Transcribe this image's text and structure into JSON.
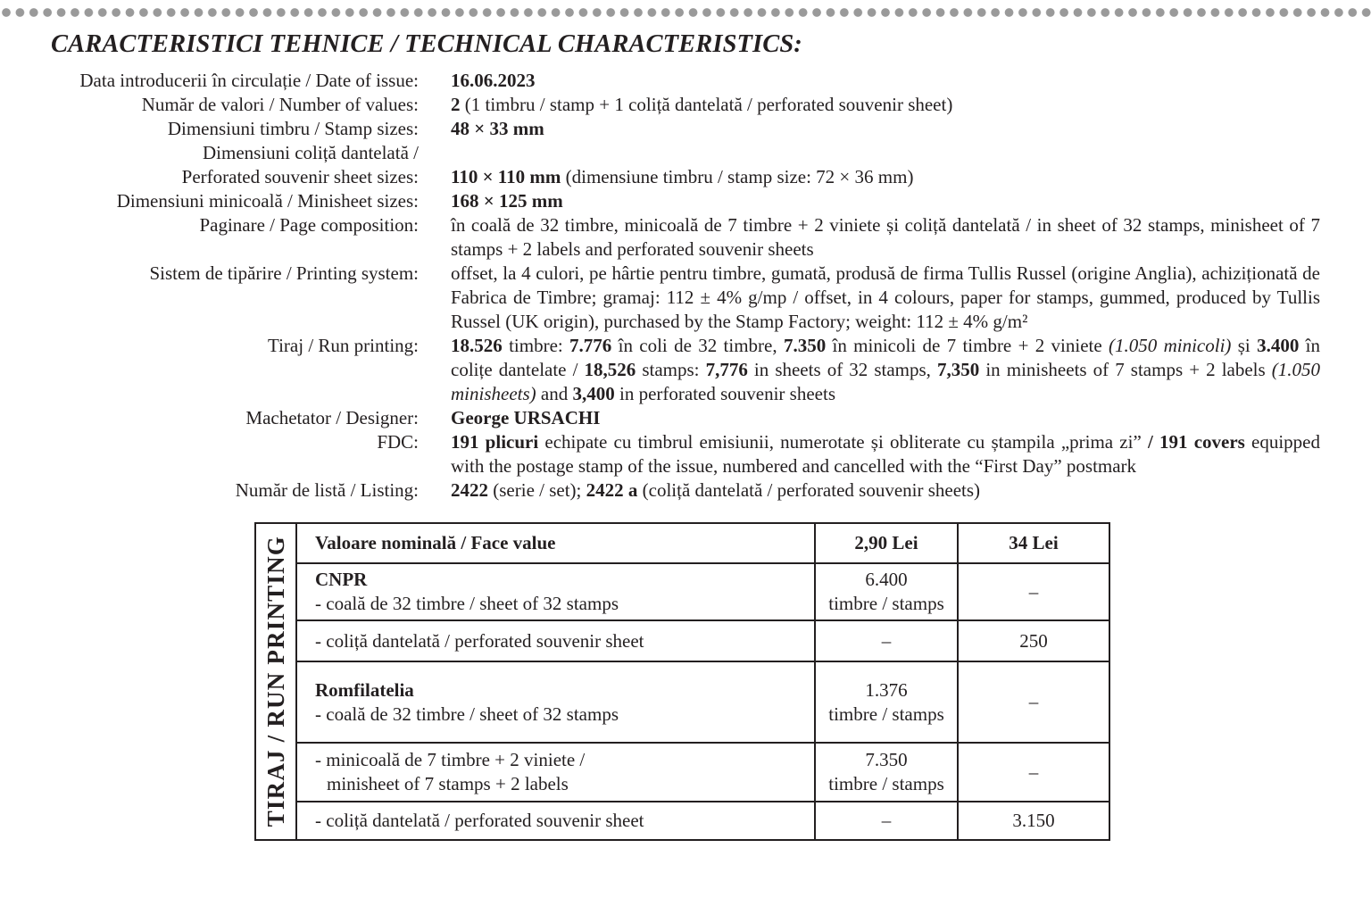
{
  "title": "CARACTERISTICI TEHNICE / TECHNICAL CHARACTERISTICS:",
  "specs": [
    {
      "label": [
        "Data introducerii în circulație / Date of issue:"
      ],
      "value": [
        [
          "b",
          "16.06.2023"
        ]
      ]
    },
    {
      "label": [
        "Număr de valori / Number of values:"
      ],
      "value": [
        [
          "b",
          "2"
        ],
        [
          "n",
          " (1 timbru / stamp + 1 coliță dantelată / perforated souvenir sheet)"
        ]
      ]
    },
    {
      "label": [
        "Dimensiuni timbru / Stamp sizes:"
      ],
      "value": [
        [
          "b",
          "48 × 33 mm"
        ]
      ]
    },
    {
      "label": [
        "Dimensiuni coliță dantelată /",
        "Perforated souvenir sheet sizes:"
      ],
      "value": [
        [
          "b",
          "110 × 110 mm"
        ],
        [
          "n",
          " (dimensiune timbru / stamp size: 72 × 36 mm)"
        ]
      ]
    },
    {
      "label": [
        "Dimensiuni minicoală / Minisheet sizes:"
      ],
      "value": [
        [
          "b",
          "168 × 125 mm"
        ]
      ]
    },
    {
      "label": [
        "Paginare / Page composition:"
      ],
      "value": [
        [
          "n",
          "în coală de 32 timbre, minicoală de 7 timbre + 2 viniete și coliță dantelată / in sheet of 32 stamps, minisheet of 7 stamps + 2 labels and perforated souvenir sheets"
        ]
      ]
    },
    {
      "label": [
        "Sistem de tipărire / Printing system:"
      ],
      "value": [
        [
          "n",
          "offset, la 4 culori, pe hârtie pentru timbre, gumată, produsă de firma Tullis Russel (origine Anglia), achiziționată de Fabrica de Timbre; gramaj: 112 ± 4% g/mp / offset, in 4 colours, paper for stamps, gummed, produced by Tullis Russel (UK origin), purchased by the Stamp Factory; weight: 112 ± 4% g/m²"
        ]
      ]
    },
    {
      "label": [
        "Tiraj / Run printing:"
      ],
      "value": [
        [
          "b",
          "18.526"
        ],
        [
          "n",
          " timbre: "
        ],
        [
          "b",
          "7.776"
        ],
        [
          "n",
          " în coli de 32 timbre, "
        ],
        [
          "b",
          "7.350"
        ],
        [
          "n",
          " în minicoli de 7 timbre + 2 viniete "
        ],
        [
          "i",
          "(1.050 minicoli)"
        ],
        [
          "n",
          " și "
        ],
        [
          "b",
          "3.400"
        ],
        [
          "n",
          " în colițe dantelate / "
        ],
        [
          "b",
          "18,526"
        ],
        [
          "n",
          " stamps: "
        ],
        [
          "b",
          "7,776"
        ],
        [
          "n",
          " in sheets of 32 stamps, "
        ],
        [
          "b",
          "7,350"
        ],
        [
          "n",
          " in minisheets of 7 stamps + 2 labels "
        ],
        [
          "i",
          "(1.050 minisheets)"
        ],
        [
          "n",
          " and "
        ],
        [
          "b",
          "3,400"
        ],
        [
          "n",
          " in perforated souvenir sheets"
        ]
      ]
    },
    {
      "label": [
        "Machetator / Designer:"
      ],
      "value": [
        [
          "b",
          "George URSACHI"
        ]
      ]
    },
    {
      "label": [
        "FDC:"
      ],
      "value": [
        [
          "b",
          "191 plicuri"
        ],
        [
          "n",
          " echipate cu timbrul emisiunii, numerotate și obliterate cu ștampila „prima zi” "
        ],
        [
          "b",
          "/ 191 covers"
        ],
        [
          "n",
          " equipped with the postage stamp of the issue, numbered and cancelled with the “First Day” postmark"
        ]
      ]
    },
    {
      "label": [
        "Număr de listă / Listing:"
      ],
      "value": [
        [
          "b",
          "2422"
        ],
        [
          "n",
          " (serie / set); "
        ],
        [
          "b",
          "2422 a"
        ],
        [
          "n",
          " (coliță dantelată / perforated souvenir sheets)"
        ]
      ]
    }
  ],
  "table": {
    "side_label": "TIRAJ / RUN PRINTING",
    "header": {
      "desc": "Valoare nominală / Face value",
      "col1": "2,90 Lei",
      "col2": "34 Lei"
    },
    "rows": [
      {
        "heading": "CNPR",
        "desc": [
          "- coală de 32 timbre / sheet of 32 stamps"
        ],
        "col1": [
          "6.400",
          "timbre / stamps"
        ],
        "col2": [
          "–"
        ]
      },
      {
        "heading": "",
        "desc": [
          "- coliță dantelată / perforated souvenir sheet"
        ],
        "col1": [
          "–"
        ],
        "col2": [
          "250"
        ]
      },
      {
        "heading": "Romfilatelia",
        "desc": [
          "- coală de 32 timbre / sheet of 32 stamps"
        ],
        "col1": [
          "1.376",
          "timbre / stamps"
        ],
        "col2": [
          "–"
        ]
      },
      {
        "heading": "",
        "desc": [
          "- minicoală de 7 timbre + 2 viniete /",
          "  minisheet of 7 stamps + 2 labels"
        ],
        "col1": [
          "7.350",
          "timbre / stamps"
        ],
        "col2": [
          "–"
        ]
      },
      {
        "heading": "",
        "desc": [
          "- coliță dantelată / perforated souvenir sheet"
        ],
        "col1": [
          "–"
        ],
        "col2": [
          "3.150"
        ]
      }
    ]
  }
}
